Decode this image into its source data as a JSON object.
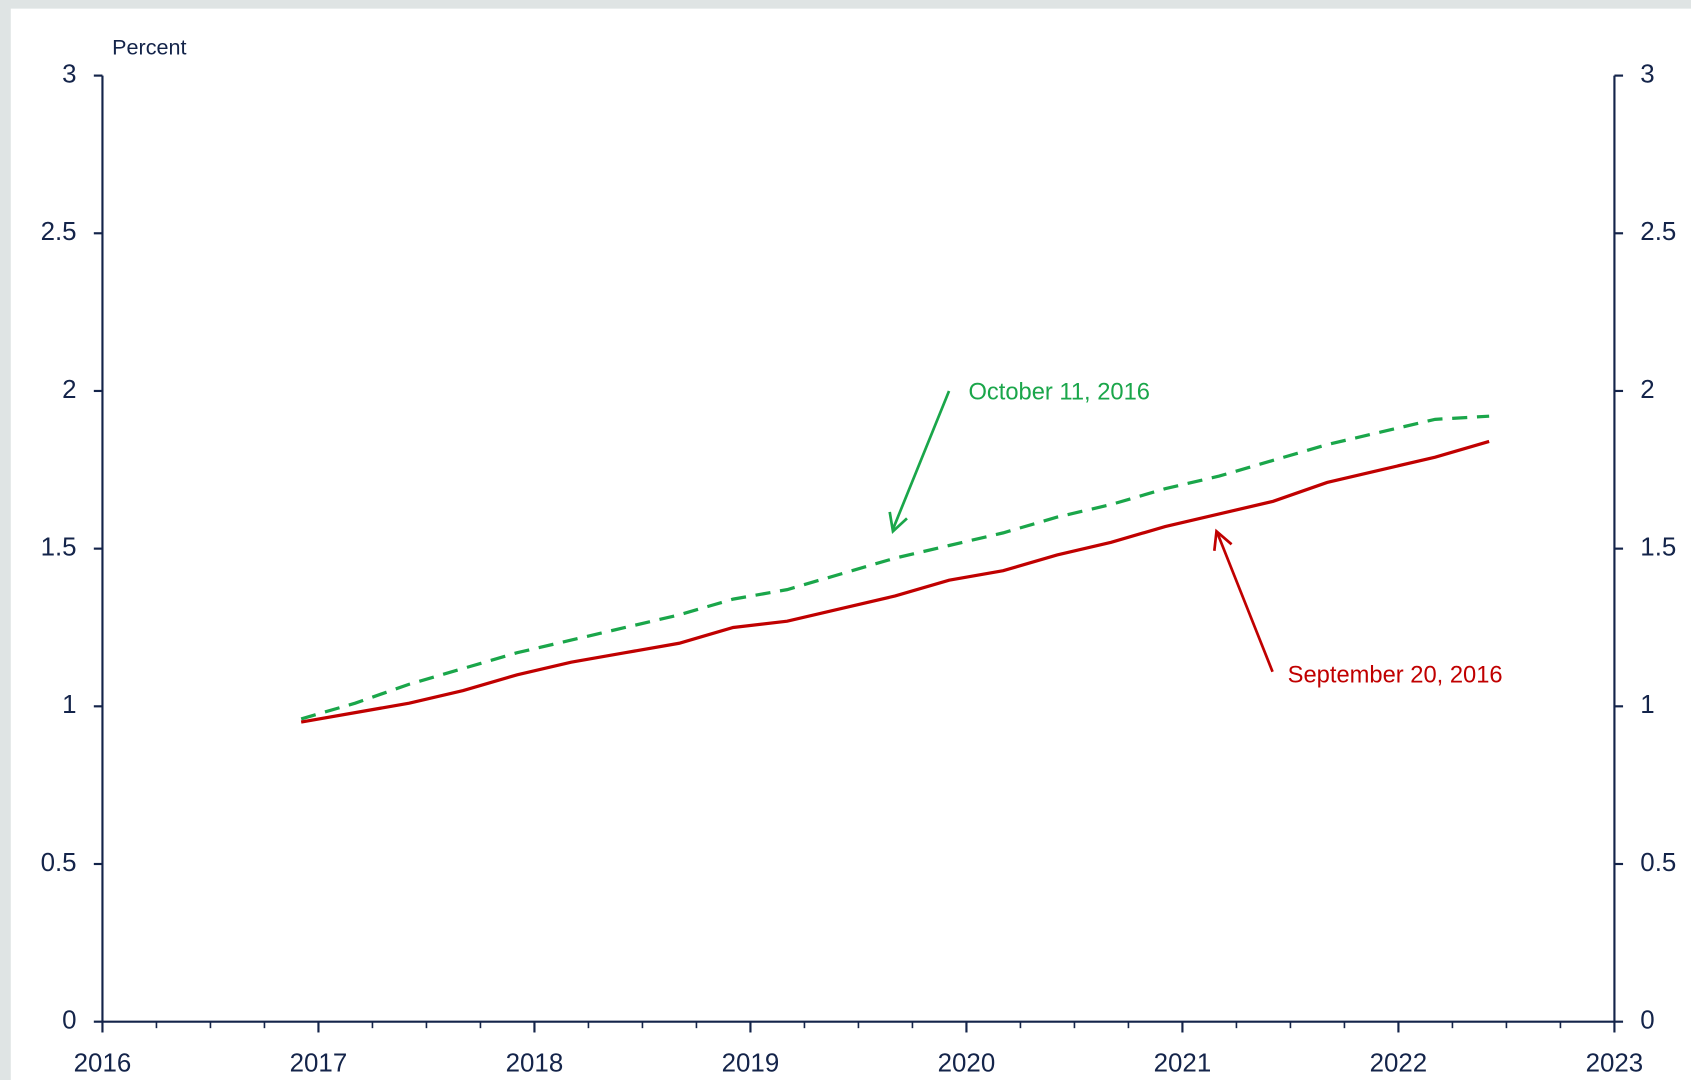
{
  "chart_data": {
    "type": "line",
    "y_label": "Percent",
    "x": [
      2016.92,
      2017.17,
      2017.42,
      2017.67,
      2017.92,
      2018.17,
      2018.42,
      2018.67,
      2018.92,
      2019.17,
      2019.42,
      2019.67,
      2019.92,
      2020.17,
      2020.42,
      2020.67,
      2020.92,
      2021.17,
      2021.42,
      2021.67,
      2021.92,
      2022.17,
      2022.42
    ],
    "series": [
      {
        "name": "October 11, 2016",
        "color": "#1aa64a",
        "dashed": true,
        "values": [
          0.96,
          1.01,
          1.07,
          1.12,
          1.17,
          1.21,
          1.25,
          1.29,
          1.34,
          1.37,
          1.42,
          1.47,
          1.51,
          1.55,
          1.6,
          1.64,
          1.69,
          1.73,
          1.78,
          1.83,
          1.87,
          1.91,
          1.92
        ]
      },
      {
        "name": "September 20, 2016",
        "color": "#c00000",
        "dashed": false,
        "values": [
          0.95,
          0.98,
          1.01,
          1.05,
          1.1,
          1.14,
          1.17,
          1.2,
          1.25,
          1.27,
          1.31,
          1.35,
          1.4,
          1.43,
          1.48,
          1.52,
          1.57,
          1.61,
          1.65,
          1.71,
          1.75,
          1.79,
          1.84
        ]
      }
    ],
    "xlim": [
      2016,
      2023
    ],
    "xticks": [
      2016,
      2017,
      2018,
      2019,
      2020,
      2021,
      2022,
      2023
    ],
    "ylim": [
      0,
      3
    ],
    "yticks": [
      0,
      0.5,
      1,
      1.5,
      2,
      2.5,
      3
    ]
  }
}
